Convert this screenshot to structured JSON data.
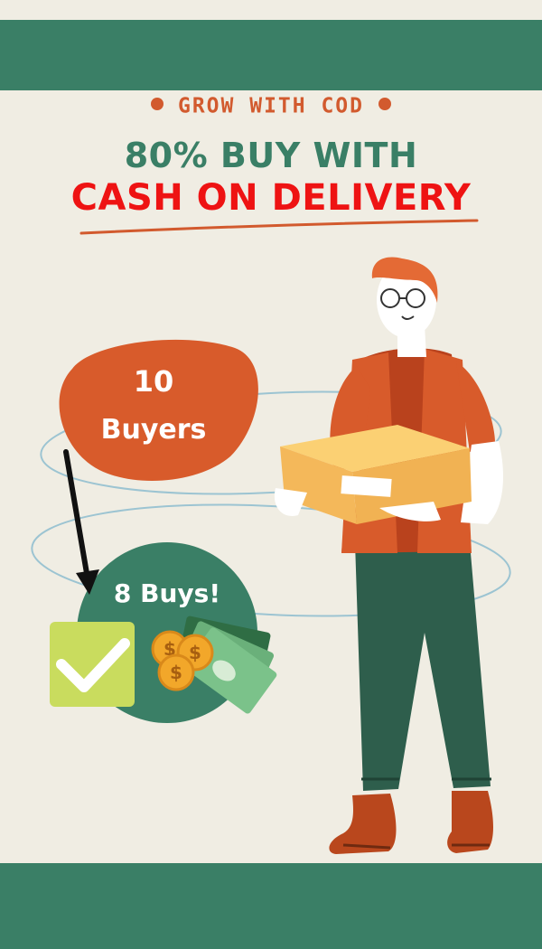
{
  "eyebrow": "GROW WITH COD",
  "headline": {
    "line1": "80% BUY WITH",
    "line2": "CASH ON DELIVERY"
  },
  "buyers_blob": {
    "count": "10",
    "label": "Buyers"
  },
  "buys_circle": {
    "label": "8 Buys!"
  },
  "colors": {
    "background": "#f0ede3",
    "brand_green": "#3a7f66",
    "accent_orange": "#d25a2e",
    "headline_red": "#ee1313",
    "check_lime": "#c9dc5e"
  },
  "icons": [
    "checkmark-icon",
    "dollar-coin-icon",
    "banknote-icon",
    "delivery-person-illustration",
    "cardboard-box-icon"
  ]
}
